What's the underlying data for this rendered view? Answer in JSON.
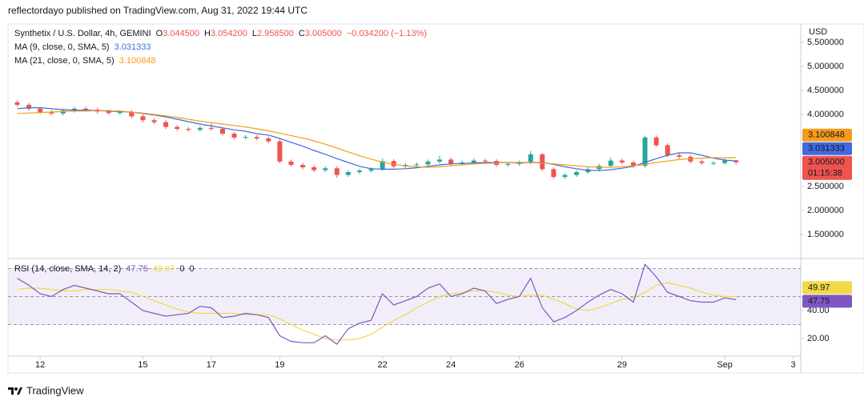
{
  "header": {
    "published": "reflectordayo published on TradingView.com, Aug 31, 2022 19:44 UTC",
    "brand": "TradingView",
    "currency": "USD"
  },
  "chart_data": [
    {
      "type": "candlestick",
      "title": "Synthetix / U.S. Dollar, 4h, GEMINI",
      "ohlc_labels": [
        {
          "key": "O",
          "value": "3.044500"
        },
        {
          "key": "H",
          "value": "3.054200"
        },
        {
          "key": "L",
          "value": "2.958500"
        },
        {
          "key": "C",
          "value": "3.005000"
        }
      ],
      "change_label": "−0.034200 (−1.13%)",
      "last_price_label": "3.005000",
      "countdown": "01:15:38",
      "up_color": "#26a69a",
      "down_color": "#ef5350",
      "x": [
        11.33,
        11.67,
        12,
        12.33,
        12.67,
        13,
        13.33,
        13.67,
        14,
        14.33,
        14.67,
        15,
        15.33,
        15.67,
        16,
        16.33,
        16.67,
        17,
        17.33,
        17.67,
        18,
        18.33,
        18.67,
        19,
        19.33,
        19.67,
        20,
        20.33,
        20.67,
        21,
        21.33,
        21.67,
        22,
        22.33,
        22.67,
        23,
        23.33,
        23.67,
        24,
        24.33,
        24.67,
        25,
        25.33,
        25.67,
        26,
        26.33,
        26.67,
        27,
        27.33,
        27.67,
        28,
        28.33,
        28.67,
        29,
        29.33,
        29.67,
        30,
        30.33,
        30.67,
        31,
        31.33,
        31.67,
        32,
        32.33
      ],
      "open": [
        4.25,
        4.2,
        4.12,
        4.05,
        4.02,
        4.08,
        4.12,
        4.1,
        4.06,
        4.03,
        4.05,
        3.96,
        3.88,
        3.84,
        3.74,
        3.7,
        3.68,
        3.72,
        3.7,
        3.6,
        3.52,
        3.53,
        3.5,
        3.44,
        3.02,
        2.95,
        2.9,
        2.84,
        2.88,
        2.74,
        2.8,
        2.83,
        2.86,
        3.03,
        2.92,
        2.95,
        2.96,
        3.02,
        3.06,
        2.97,
        3.0,
        3.04,
        3.03,
        2.95,
        2.97,
        3.0,
        3.17,
        2.86,
        2.7,
        2.74,
        2.8,
        2.86,
        2.93,
        3.04,
        3.0,
        2.93,
        3.52,
        3.36,
        3.15,
        3.12,
        3.02,
        2.99,
        2.99,
        3.0445
      ],
      "high": [
        4.29,
        4.24,
        4.16,
        4.09,
        4.12,
        4.16,
        4.16,
        4.14,
        4.1,
        4.09,
        4.09,
        4.0,
        3.92,
        3.88,
        3.78,
        3.74,
        3.76,
        3.82,
        3.74,
        3.64,
        3.57,
        3.57,
        3.54,
        3.48,
        3.06,
        2.99,
        2.94,
        2.92,
        2.92,
        2.84,
        2.87,
        2.9,
        3.08,
        3.07,
        2.99,
        3.0,
        3.06,
        3.14,
        3.1,
        3.04,
        3.08,
        3.08,
        3.07,
        3.01,
        3.04,
        3.24,
        3.2,
        2.9,
        2.78,
        2.84,
        2.9,
        2.97,
        3.1,
        3.08,
        3.04,
        3.55,
        3.56,
        3.4,
        3.19,
        3.16,
        3.06,
        3.03,
        3.08,
        3.0542
      ],
      "low": [
        4.16,
        4.08,
        4.01,
        3.98,
        3.98,
        4.04,
        4.06,
        4.02,
        3.99,
        3.99,
        3.92,
        3.84,
        3.8,
        3.7,
        3.66,
        3.64,
        3.64,
        3.66,
        3.56,
        3.48,
        3.48,
        3.46,
        3.4,
        2.98,
        2.91,
        2.86,
        2.8,
        2.8,
        2.68,
        2.7,
        2.76,
        2.79,
        2.82,
        2.88,
        2.88,
        2.91,
        2.92,
        2.98,
        2.93,
        2.93,
        2.96,
        2.99,
        2.91,
        2.91,
        2.93,
        2.96,
        2.82,
        2.66,
        2.66,
        2.7,
        2.76,
        2.82,
        2.89,
        2.96,
        2.89,
        2.89,
        3.32,
        3.11,
        3.08,
        2.98,
        2.95,
        2.95,
        2.95,
        2.9585
      ],
      "close": [
        4.2,
        4.12,
        4.05,
        4.02,
        4.08,
        4.12,
        4.1,
        4.06,
        4.03,
        4.05,
        3.96,
        3.88,
        3.84,
        3.74,
        3.7,
        3.68,
        3.72,
        3.7,
        3.6,
        3.52,
        3.53,
        3.5,
        3.44,
        3.02,
        2.95,
        2.9,
        2.84,
        2.88,
        2.74,
        2.8,
        2.83,
        2.86,
        3.03,
        2.92,
        2.95,
        2.96,
        3.02,
        3.06,
        2.97,
        3.0,
        3.04,
        3.03,
        2.95,
        2.97,
        3.0,
        3.17,
        2.86,
        2.7,
        2.74,
        2.8,
        2.86,
        2.93,
        3.04,
        3.0,
        2.93,
        3.52,
        3.36,
        3.15,
        3.12,
        3.02,
        2.99,
        2.99,
        3.04,
        3.005
      ],
      "series": [
        {
          "name": "MA (9, close, 0, SMA, 5)",
          "last_label": "3.031333",
          "color": "#3f6ae0",
          "values": [
            4.12,
            4.14,
            4.14,
            4.12,
            4.1,
            4.09,
            4.09,
            4.08,
            4.07,
            4.06,
            4.05,
            4.02,
            3.99,
            3.95,
            3.9,
            3.85,
            3.8,
            3.76,
            3.72,
            3.68,
            3.65,
            3.6,
            3.57,
            3.5,
            3.42,
            3.34,
            3.25,
            3.17,
            3.08,
            3.0,
            2.92,
            2.87,
            2.86,
            2.86,
            2.87,
            2.89,
            2.92,
            2.95,
            2.97,
            2.98,
            2.99,
            3.0,
            3.0,
            3.0,
            2.99,
            3.0,
            3.0,
            2.96,
            2.91,
            2.87,
            2.84,
            2.83,
            2.85,
            2.88,
            2.92,
            3.0,
            3.08,
            3.15,
            3.2,
            3.2,
            3.15,
            3.09,
            3.05,
            3.031333
          ]
        },
        {
          "name": "MA (21, close, 0, SMA, 5)",
          "last_label": "3.100848",
          "color": "#f59c1a",
          "values": [
            4.02,
            4.03,
            4.04,
            4.05,
            4.06,
            4.07,
            4.07,
            4.08,
            4.08,
            4.07,
            4.05,
            4.03,
            4.0,
            3.97,
            3.94,
            3.9,
            3.86,
            3.83,
            3.8,
            3.77,
            3.74,
            3.7,
            3.66,
            3.61,
            3.56,
            3.51,
            3.45,
            3.38,
            3.3,
            3.22,
            3.14,
            3.07,
            3.01,
            2.96,
            2.93,
            2.91,
            2.9,
            2.91,
            2.93,
            2.95,
            2.97,
            2.98,
            2.99,
            3.0,
            3.0,
            3.0,
            2.99,
            2.97,
            2.95,
            2.93,
            2.91,
            2.9,
            2.9,
            2.91,
            2.93,
            2.96,
            3.0,
            3.03,
            3.06,
            3.08,
            3.09,
            3.1,
            3.1,
            3.100848
          ]
        }
      ],
      "xlim": [
        11.06,
        34.22
      ],
      "ylim": [
        1.017,
        5.883
      ],
      "yticks": [
        {
          "value": 1.5,
          "label": "1.500000"
        },
        {
          "value": 2,
          "label": "2.000000"
        },
        {
          "value": 2.5,
          "label": "2.500000"
        },
        {
          "value": 4,
          "label": "4.000000"
        },
        {
          "value": 4.5,
          "label": "4.500000"
        },
        {
          "value": 5,
          "label": "5.000000"
        },
        {
          "value": 5.5,
          "label": "5.500000"
        }
      ],
      "grid": false
    },
    {
      "type": "line",
      "title": "RSI (14, close, SMA, 14, 2)",
      "extra_labels": [
        "0",
        "0"
      ],
      "series": [
        {
          "last_label": "47.75",
          "color": "#7e57c2",
          "values": [
            63,
            58,
            52,
            50,
            55,
            58,
            56,
            54,
            52,
            52,
            46,
            40,
            38,
            36,
            37,
            38,
            43,
            42,
            35,
            36,
            38,
            37,
            35,
            22,
            18,
            17,
            17,
            22,
            16,
            27,
            31,
            33,
            52,
            44,
            47,
            50,
            56,
            59,
            50,
            52,
            56,
            54,
            45,
            48,
            50,
            63,
            42,
            32,
            35,
            40,
            46,
            51,
            55,
            52,
            46,
            73,
            64,
            53,
            50,
            47,
            46,
            46,
            49,
            47.75
          ]
        },
        {
          "last_label": "49.97",
          "color": "#f2d846",
          "values": [
            55,
            56,
            56,
            55,
            54,
            54,
            55,
            55,
            55,
            54,
            53,
            50,
            47,
            44,
            41,
            39,
            38,
            38,
            38,
            38,
            37,
            37,
            37,
            34,
            30,
            26,
            23,
            20,
            19,
            19,
            20,
            23,
            28,
            33,
            37,
            42,
            46,
            50,
            52,
            53,
            54,
            54,
            53,
            51,
            50,
            51,
            51,
            48,
            45,
            41,
            40,
            42,
            45,
            48,
            49,
            53,
            58,
            60,
            58,
            56,
            53,
            51,
            50,
            49.97
          ]
        }
      ],
      "bands": [
        30,
        50,
        70
      ],
      "xlim": [
        11.06,
        34.22
      ],
      "xticks": [
        12,
        15,
        17,
        19,
        22,
        24,
        26,
        29,
        {
          "value": 32,
          "label": "Sep"
        },
        {
          "value": 34,
          "label": "3"
        }
      ],
      "ylim": [
        7.4,
        76
      ],
      "yticks": [
        {
          "value": 20,
          "label": "20.00"
        },
        {
          "value": 40,
          "label": "40.00"
        }
      ],
      "grid": false
    }
  ]
}
